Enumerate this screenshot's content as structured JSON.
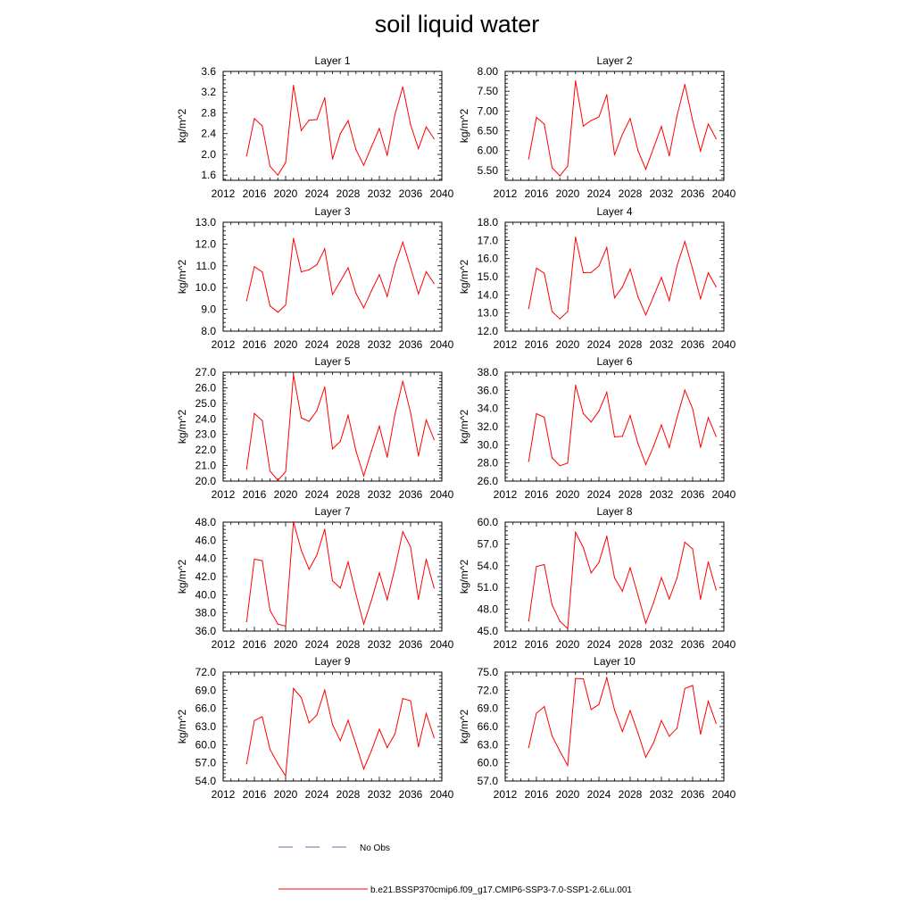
{
  "title": "soil liquid water",
  "legend": {
    "obs_label": "No Obs",
    "obs_color": "#6a6aa8",
    "model_label": "b.e21.BSSP370cmip6.f09_g17.CMIP6-SSP3-7.0-SSP1-2.6Lu.001",
    "model_color": "#ff0000"
  },
  "chart_data": [
    {
      "type": "line",
      "title": "Layer 1",
      "ylabel": "kg/m^2",
      "xlim": [
        2012,
        2040
      ],
      "xticks": [
        2012,
        2016,
        2020,
        2024,
        2028,
        2032,
        2036,
        2040
      ],
      "ylim": [
        1.5,
        3.6
      ],
      "yticks": [
        "1.6",
        "2.0",
        "2.4",
        "2.8",
        "3.2",
        "3.6"
      ],
      "x": [
        2015,
        2016,
        2017,
        2018,
        2019,
        2020,
        2021,
        2022,
        2023,
        2024,
        2025,
        2026,
        2027,
        2028,
        2029,
        2030,
        2031,
        2032,
        2033,
        2034,
        2035,
        2036,
        2037,
        2038,
        2039
      ],
      "values": [
        1.97,
        2.69,
        2.55,
        1.77,
        1.6,
        1.84,
        3.33,
        2.46,
        2.66,
        2.67,
        3.09,
        1.91,
        2.4,
        2.65,
        2.09,
        1.79,
        2.15,
        2.5,
        1.98,
        2.77,
        3.3,
        2.57,
        2.11,
        2.53,
        2.3
      ]
    },
    {
      "type": "line",
      "title": "Layer 2",
      "ylabel": "kg/m^2",
      "xlim": [
        2012,
        2040
      ],
      "xticks": [
        2012,
        2016,
        2020,
        2024,
        2028,
        2032,
        2036,
        2040
      ],
      "ylim": [
        5.25,
        8.0
      ],
      "yticks": [
        "5.50",
        "6.00",
        "6.50",
        "7.00",
        "7.50",
        "8.00"
      ],
      "x": [
        2015,
        2016,
        2017,
        2018,
        2019,
        2020,
        2021,
        2022,
        2023,
        2024,
        2025,
        2026,
        2027,
        2028,
        2029,
        2030,
        2031,
        2032,
        2033,
        2034,
        2035,
        2036,
        2037,
        2038,
        2039
      ],
      "values": [
        5.79,
        6.84,
        6.67,
        5.57,
        5.36,
        5.61,
        7.76,
        6.62,
        6.76,
        6.85,
        7.41,
        5.89,
        6.41,
        6.81,
        6.0,
        5.53,
        6.07,
        6.61,
        5.87,
        6.88,
        7.67,
        6.76,
        5.99,
        6.67,
        6.3
      ]
    },
    {
      "type": "line",
      "title": "Layer 3",
      "ylabel": "kg/m^2",
      "xlim": [
        2012,
        2040
      ],
      "xticks": [
        2012,
        2016,
        2020,
        2024,
        2028,
        2032,
        2036,
        2040
      ],
      "ylim": [
        8.0,
        13.0
      ],
      "yticks": [
        "8.0",
        "9.0",
        "10.0",
        "11.0",
        "12.0",
        "13.0"
      ],
      "x": [
        2015,
        2016,
        2017,
        2018,
        2019,
        2020,
        2021,
        2022,
        2023,
        2024,
        2025,
        2026,
        2027,
        2028,
        2029,
        2030,
        2031,
        2032,
        2033,
        2034,
        2035,
        2036,
        2037,
        2038,
        2039
      ],
      "values": [
        9.4,
        10.96,
        10.72,
        9.16,
        8.87,
        9.2,
        12.26,
        10.72,
        10.82,
        11.05,
        11.78,
        9.68,
        10.29,
        10.91,
        9.74,
        9.07,
        9.86,
        10.59,
        9.59,
        11.03,
        12.08,
        10.91,
        9.71,
        10.73,
        10.19
      ]
    },
    {
      "type": "line",
      "title": "Layer 4",
      "ylabel": "kg/m^2",
      "xlim": [
        2012,
        2040
      ],
      "xticks": [
        2012,
        2016,
        2020,
        2024,
        2028,
        2032,
        2036,
        2040
      ],
      "ylim": [
        12.0,
        18.0
      ],
      "yticks": [
        "12.0",
        "13.0",
        "14.0",
        "15.0",
        "16.0",
        "17.0",
        "18.0"
      ],
      "x": [
        2015,
        2016,
        2017,
        2018,
        2019,
        2020,
        2021,
        2022,
        2023,
        2024,
        2025,
        2026,
        2027,
        2028,
        2029,
        2030,
        2031,
        2032,
        2033,
        2034,
        2035,
        2036,
        2037,
        2038,
        2039
      ],
      "values": [
        13.25,
        15.47,
        15.19,
        13.08,
        12.68,
        13.08,
        17.18,
        15.22,
        15.23,
        15.59,
        16.61,
        13.84,
        14.43,
        15.42,
        13.89,
        12.89,
        13.93,
        14.96,
        13.68,
        15.59,
        16.94,
        15.42,
        13.79,
        15.21,
        14.44
      ]
    },
    {
      "type": "line",
      "title": "Layer 5",
      "ylabel": "kg/m^2",
      "xlim": [
        2012,
        2040
      ],
      "xticks": [
        2012,
        2016,
        2020,
        2024,
        2028,
        2032,
        2036,
        2040
      ],
      "ylim": [
        20.0,
        27.0
      ],
      "yticks": [
        "20.0",
        "21.0",
        "22.0",
        "23.0",
        "24.0",
        "25.0",
        "26.0",
        "27.0"
      ],
      "x": [
        2015,
        2016,
        2017,
        2018,
        2019,
        2020,
        2021,
        2022,
        2023,
        2024,
        2025,
        2026,
        2027,
        2028,
        2029,
        2030,
        2031,
        2032,
        2033,
        2034,
        2035,
        2036,
        2037,
        2038,
        2039
      ],
      "values": [
        20.78,
        24.35,
        23.89,
        20.64,
        20.05,
        20.6,
        26.84,
        24.07,
        23.84,
        24.52,
        26.05,
        22.07,
        22.55,
        24.23,
        21.94,
        20.34,
        21.96,
        23.53,
        21.54,
        24.29,
        26.42,
        24.4,
        21.62,
        23.93,
        22.67
      ]
    },
    {
      "type": "line",
      "title": "Layer 6",
      "ylabel": "kg/m^2",
      "xlim": [
        2012,
        2040
      ],
      "xticks": [
        2012,
        2016,
        2020,
        2024,
        2028,
        2032,
        2036,
        2040
      ],
      "ylim": [
        26.0,
        38.0
      ],
      "yticks": [
        "26.0",
        "28.0",
        "30.0",
        "32.0",
        "34.0",
        "36.0",
        "38.0"
      ],
      "x": [
        2015,
        2016,
        2017,
        2018,
        2019,
        2020,
        2021,
        2022,
        2023,
        2024,
        2025,
        2026,
        2027,
        2028,
        2029,
        2030,
        2031,
        2032,
        2033,
        2034,
        2035,
        2036,
        2037,
        2038,
        2039
      ],
      "values": [
        28.17,
        33.43,
        33.03,
        28.57,
        27.69,
        27.99,
        36.57,
        33.46,
        32.51,
        33.71,
        35.78,
        30.87,
        30.93,
        33.22,
        30.12,
        27.83,
        29.86,
        32.19,
        29.71,
        32.99,
        36.02,
        33.98,
        29.72,
        32.99,
        30.93
      ]
    },
    {
      "type": "line",
      "title": "Layer 7",
      "ylabel": "kg/m^2",
      "xlim": [
        2012,
        2040
      ],
      "xticks": [
        2012,
        2016,
        2020,
        2024,
        2028,
        2032,
        2036,
        2040
      ],
      "ylim": [
        36.0,
        48.0
      ],
      "yticks": [
        "36.0",
        "38.0",
        "40.0",
        "42.0",
        "44.0",
        "46.0",
        "48.0"
      ],
      "x": [
        2015,
        2016,
        2017,
        2018,
        2019,
        2020,
        2021,
        2022,
        2023,
        2024,
        2025,
        2026,
        2027,
        2028,
        2029,
        2030,
        2031,
        2032,
        2033,
        2034,
        2035,
        2036,
        2037,
        2038,
        2039
      ],
      "values": [
        37.03,
        43.92,
        43.76,
        38.29,
        36.77,
        36.54,
        48.05,
        44.9,
        42.81,
        44.38,
        47.21,
        41.53,
        40.75,
        43.62,
        40.04,
        36.77,
        39.43,
        42.41,
        39.46,
        42.94,
        46.95,
        45.26,
        39.5,
        43.92,
        40.75
      ]
    },
    {
      "type": "line",
      "title": "Layer 8",
      "ylabel": "kg/m^2",
      "xlim": [
        2012,
        2040
      ],
      "xticks": [
        2012,
        2016,
        2020,
        2024,
        2028,
        2032,
        2036,
        2040
      ],
      "ylim": [
        45.0,
        60.0
      ],
      "yticks": [
        "45.0",
        "48.0",
        "51.0",
        "54.0",
        "57.0",
        "60.0"
      ],
      "x": [
        2015,
        2016,
        2017,
        2018,
        2019,
        2020,
        2021,
        2022,
        2023,
        2024,
        2025,
        2026,
        2027,
        2028,
        2029,
        2030,
        2031,
        2032,
        2033,
        2034,
        2035,
        2036,
        2037,
        2038,
        2039
      ],
      "values": [
        46.37,
        53.9,
        54.16,
        48.6,
        46.34,
        45.35,
        58.6,
        56.5,
        53.0,
        54.44,
        58.07,
        52.33,
        50.5,
        53.72,
        49.92,
        46.07,
        48.94,
        52.37,
        49.42,
        52.33,
        57.24,
        56.31,
        49.39,
        54.53,
        50.66
      ]
    },
    {
      "type": "line",
      "title": "Layer 9",
      "ylabel": "kg/m^2",
      "xlim": [
        2012,
        2040
      ],
      "xticks": [
        2012,
        2016,
        2020,
        2024,
        2028,
        2032,
        2036,
        2040
      ],
      "ylim": [
        54.0,
        72.0
      ],
      "yticks": [
        "54.0",
        "57.0",
        "60.0",
        "63.0",
        "66.0",
        "69.0",
        "72.0"
      ],
      "x": [
        2015,
        2016,
        2017,
        2018,
        2019,
        2020,
        2021,
        2022,
        2023,
        2024,
        2025,
        2026,
        2027,
        2028,
        2029,
        2030,
        2031,
        2032,
        2033,
        2034,
        2035,
        2036,
        2037,
        2038,
        2039
      ],
      "values": [
        56.84,
        64.01,
        64.62,
        59.23,
        56.86,
        54.82,
        69.28,
        67.79,
        63.62,
        64.91,
        69.02,
        63.34,
        60.67,
        64.04,
        60.08,
        55.99,
        59.08,
        62.57,
        59.54,
        61.77,
        67.63,
        67.27,
        59.67,
        65.15,
        61.17
      ]
    },
    {
      "type": "line",
      "title": "Layer 10",
      "ylabel": "kg/m^2",
      "xlim": [
        2012,
        2040
      ],
      "xticks": [
        2012,
        2016,
        2020,
        2024,
        2028,
        2032,
        2036,
        2040
      ],
      "ylim": [
        57.0,
        75.0
      ],
      "yticks": [
        "57.0",
        "60.0",
        "63.0",
        "66.0",
        "69.0",
        "72.0",
        "75.0"
      ],
      "x": [
        2015,
        2016,
        2017,
        2018,
        2019,
        2020,
        2021,
        2022,
        2023,
        2024,
        2025,
        2026,
        2027,
        2028,
        2029,
        2030,
        2031,
        2032,
        2033,
        2034,
        2035,
        2036,
        2037,
        2038,
        2039
      ],
      "values": [
        62.53,
        68.21,
        69.28,
        64.45,
        61.93,
        59.57,
        73.95,
        73.89,
        68.82,
        69.66,
        74.09,
        68.75,
        65.18,
        68.62,
        64.91,
        60.93,
        63.35,
        66.99,
        64.4,
        65.73,
        72.28,
        72.79,
        64.74,
        70.19,
        66.53
      ]
    }
  ]
}
